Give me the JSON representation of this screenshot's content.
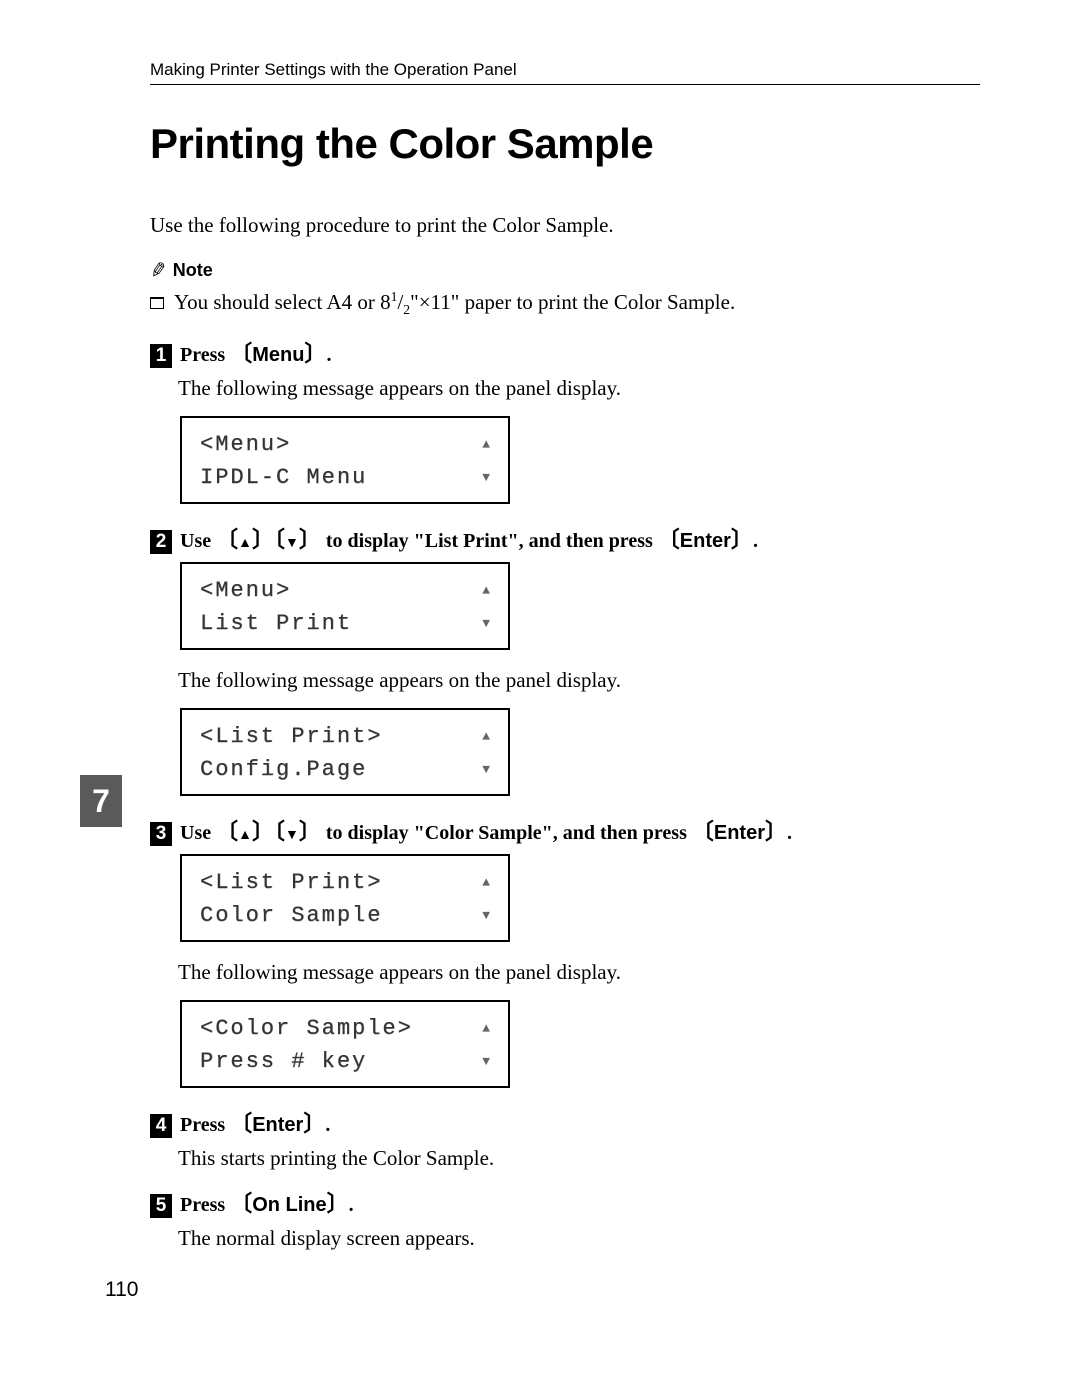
{
  "header": {
    "running_head": "Making Printer Settings with the Operation Panel"
  },
  "title": "Printing the Color Sample",
  "intro": "Use the following procedure to print the Color Sample.",
  "note": {
    "label": "Note",
    "body_prefix": "You should select A4 or 8",
    "body_sup": "1",
    "body_frac": "/",
    "body_sub": "2",
    "body_suffix": "\"×11\" paper to print the Color Sample."
  },
  "steps": {
    "s1": {
      "num": "1",
      "instr_prefix": "Press ",
      "key": "Menu",
      "instr_suffix": ".",
      "body": "The following message appears on the panel display.",
      "lcd": {
        "line1": "<Menu>",
        "line2": " IPDL-C Menu"
      }
    },
    "s2": {
      "num": "2",
      "instr_prefix": "Use ",
      "instr_mid": " to display \"List Print\", and then press ",
      "key": "Enter",
      "instr_suffix": ".",
      "lcd1": {
        "line1": "<Menu>",
        "line2": " List Print"
      },
      "body": "The following message appears on the panel display.",
      "lcd2": {
        "line1": "<List Print>",
        "line2": " Config.Page"
      }
    },
    "s3": {
      "num": "3",
      "instr_prefix": "Use ",
      "instr_mid": " to display \"Color Sample\", and then press ",
      "key": "Enter",
      "instr_suffix": ".",
      "lcd1": {
        "line1": "<List Print>",
        "line2": " Color Sample"
      },
      "body": "The following message appears on the panel display.",
      "lcd2": {
        "line1": "<Color Sample>",
        "line2": " Press # key"
      }
    },
    "s4": {
      "num": "4",
      "instr_prefix": "Press ",
      "key": "Enter",
      "instr_suffix": ".",
      "body": "This starts printing the Color Sample."
    },
    "s5": {
      "num": "5",
      "instr_prefix": "Press ",
      "key": "On Line",
      "instr_suffix": ".",
      "body": "The normal display screen appears."
    }
  },
  "section_tab": "7",
  "page_number": "110",
  "arrows": {
    "up": "▲",
    "down": "▼",
    "lcd_up": "▲",
    "lcd_down": "▼"
  }
}
